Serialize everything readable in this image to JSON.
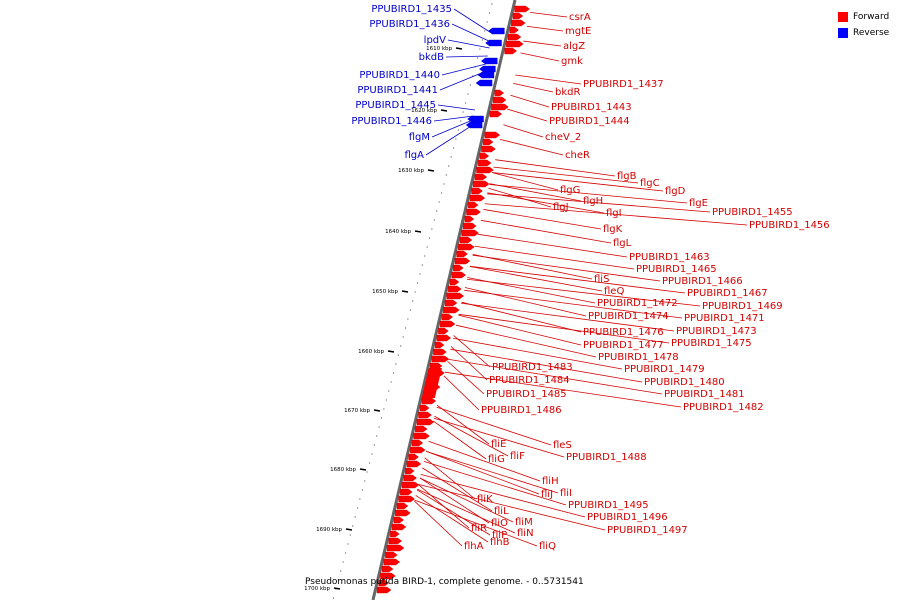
{
  "legend": {
    "forward_label": "Forward",
    "reverse_label": "Reverse",
    "forward_color": "#ff0000",
    "reverse_color": "#0000ff"
  },
  "caption": "Pseudomonas putida BIRD-1, complete genome. - 0..5731541",
  "ticks": [
    "1610 kbp",
    "1620 kbp",
    "1630 kbp",
    "1640 kbp",
    "1650 kbp",
    "1660 kbp",
    "1670 kbp",
    "1680 kbp",
    "1690 kbp",
    "1700 kbp"
  ],
  "reverse_labels": [
    "PPUBIRD1_1435",
    "PPUBIRD1_1436",
    "lpdV",
    "bkdB",
    "PPUBIRD1_1440",
    "PPUBIRD1_1441",
    "PPUBIRD1_1445",
    "PPUBIRD1_1446",
    "flgM",
    "flgA"
  ],
  "forward_labels": [
    "csrA",
    "mgtE",
    "algZ",
    "gmk",
    "PPUBIRD1_1437",
    "bkdR",
    "PPUBIRD1_1443",
    "PPUBIRD1_1444",
    "cheV_2",
    "cheR",
    "flgB",
    "flgC",
    "flgD",
    "flgE",
    "PPUBIRD1_1455",
    "PPUBIRD1_1456",
    "flgG",
    "flgH",
    "flgI",
    "flgJ",
    "flgK",
    "flgL",
    "PPUBIRD1_1463",
    "PPUBIRD1_1465",
    "PPUBIRD1_1466",
    "fliS",
    "fleQ",
    "PPUBIRD1_1467",
    "PPUBIRD1_1469",
    "PPUBIRD1_1472",
    "PPUBIRD1_1474",
    "PPUBIRD1_1471",
    "PPUBIRD1_1473",
    "PPUBIRD1_1476",
    "PPUBIRD1_1477",
    "PPUBIRD1_1475",
    "PPUBIRD1_1478",
    "PPUBIRD1_1483",
    "PPUBIRD1_1479",
    "PPUBIRD1_1484",
    "PPUBIRD1_1480",
    "PPUBIRD1_1485",
    "PPUBIRD1_1481",
    "PPUBIRD1_1482",
    "PPUBIRD1_1486",
    "fliE",
    "fleS",
    "fliG",
    "fliF",
    "PPUBIRD1_1488",
    "fliH",
    "fliJ",
    "fliI",
    "fliK",
    "PPUBIRD1_1495",
    "fliL",
    "PPUBIRD1_1496",
    "fliO",
    "fliM",
    "fliR",
    "PPUBIRD1_1497",
    "fliP",
    "fliN",
    "flhB",
    "fliQ",
    "flhA"
  ]
}
